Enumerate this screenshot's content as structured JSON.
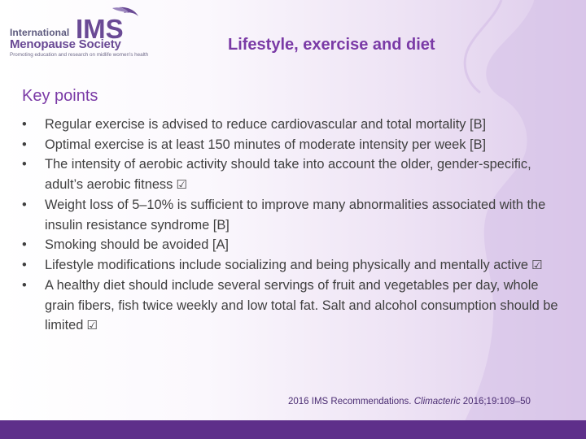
{
  "logo": {
    "line1": "International",
    "brand": "IMS",
    "line2": "Menopause Society",
    "tagline": "Promoting education and research on midlife women's health"
  },
  "title": "Lifestyle, exercise and diet",
  "section_heading": "Key points",
  "bullet_glyph": "•",
  "check_glyph": "☑",
  "points": [
    {
      "text": "Regular exercise is advised to reduce cardiovascular and total mortality [B]",
      "check": ""
    },
    {
      "text": "Optimal exercise is at least 150 minutes of moderate intensity per week [B]",
      "check": ""
    },
    {
      "text": "The intensity of aerobic activity should take into account the older, gender-specific, adult’s aerobic fitness",
      "check": "☑"
    },
    {
      "text": "Weight loss of 5–10% is sufficient to improve many abnormalities associated with the insulin resistance syndrome [B]",
      "check": ""
    },
    {
      "text": "Smoking should be avoided [A]",
      "check": ""
    },
    {
      "text": "Lifestyle modifications include socializing and being physically and mentally active",
      "check": "☑"
    },
    {
      "text": "A healthy diet should include several servings of fruit and vegetables per day, whole grain fibers, fish twice weekly and low total fat. Salt and alcohol consumption should be limited",
      "check": "☑"
    }
  ],
  "reference": {
    "prefix": "2016 IMS Recommendations. ",
    "journal": "Climacteric",
    "suffix": " 2016;19:109–50"
  },
  "colors": {
    "accent": "#7a3aa6",
    "bottom_bar": "#5e2f8a",
    "body_text": "#404040"
  }
}
